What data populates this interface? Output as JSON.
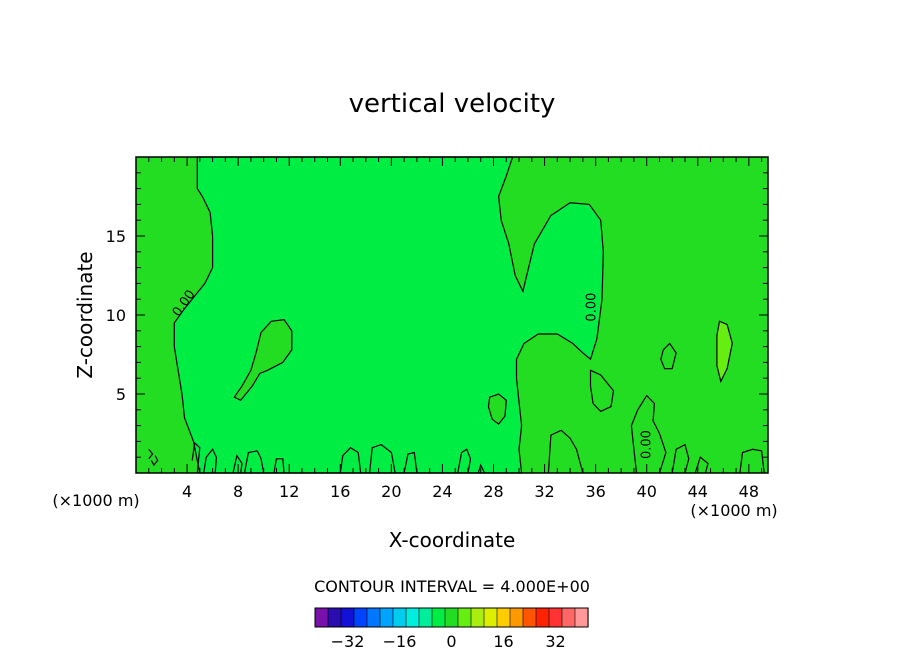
{
  "chart_data": {
    "type": "contour",
    "title": "vertical velocity",
    "xlabel": "X-coordinate",
    "ylabel": "Z-coordinate",
    "x_unit": "(×1000 m)",
    "x_unit_right": "(×1000 m)",
    "xlim": [
      0,
      49.5
    ],
    "ylim": [
      0,
      20
    ],
    "x_ticks": [
      4,
      8,
      12,
      16,
      20,
      24,
      28,
      32,
      36,
      40,
      44,
      48
    ],
    "y_ticks": [
      5,
      10,
      15
    ],
    "contour_interval_text": "CONTOUR INTERVAL = 4.000E+00",
    "contour_labels": [
      {
        "text": "0.00",
        "x": 4.0,
        "y": 10.6
      },
      {
        "text": "0.00",
        "x": 36.0,
        "y": 10.5
      },
      {
        "text": "0.00",
        "x": 40.3,
        "y": 1.8
      }
    ],
    "background_level_color": "#22dd22",
    "inner_level_color": "#00ee44",
    "positive_level_color": "#66ee11",
    "regions": [
      {
        "level": "background",
        "color": "#22dd22",
        "points": [
          [
            0,
            0
          ],
          [
            49.5,
            0
          ],
          [
            49.5,
            20
          ],
          [
            0,
            20
          ]
        ]
      },
      {
        "level": "inner",
        "color": "#00ee44",
        "points": [
          [
            4.8,
            20
          ],
          [
            4.8,
            18
          ],
          [
            5.2,
            17.5
          ],
          [
            5.8,
            16.5
          ],
          [
            6.0,
            15.0
          ],
          [
            6.0,
            13.0
          ],
          [
            5.4,
            12.0
          ],
          [
            4.6,
            11.2
          ],
          [
            3.8,
            10.4
          ],
          [
            3.0,
            9.5
          ],
          [
            3.0,
            8.0
          ],
          [
            3.3,
            6.5
          ],
          [
            3.6,
            5.0
          ],
          [
            3.8,
            3.5
          ],
          [
            4.5,
            2.0
          ],
          [
            5.0,
            0
          ],
          [
            30.2,
            0
          ],
          [
            30.0,
            1.5
          ],
          [
            30.2,
            3.0
          ],
          [
            30.0,
            4.5
          ],
          [
            29.8,
            6.0
          ],
          [
            29.8,
            7.2
          ],
          [
            30.4,
            8.2
          ],
          [
            31.5,
            8.8
          ],
          [
            33.0,
            8.8
          ],
          [
            34.2,
            8.2
          ],
          [
            35.0,
            7.6
          ],
          [
            35.6,
            7.2
          ],
          [
            36.1,
            8.5
          ],
          [
            36.5,
            11.0
          ],
          [
            36.6,
            14.0
          ],
          [
            36.4,
            16.0
          ],
          [
            35.5,
            17.0
          ],
          [
            34.0,
            17.1
          ],
          [
            32.5,
            16.3
          ],
          [
            31.2,
            14.5
          ],
          [
            30.6,
            12.5
          ],
          [
            30.3,
            11.5
          ],
          [
            29.7,
            12.5
          ],
          [
            29.2,
            14.5
          ],
          [
            28.6,
            16.0
          ],
          [
            28.4,
            17.5
          ],
          [
            29.0,
            18.8
          ],
          [
            29.5,
            20
          ]
        ]
      },
      {
        "level": "positive",
        "color": "#22dd22",
        "points": [
          [
            7.7,
            4.8
          ],
          [
            8.3,
            5.5
          ],
          [
            9.0,
            6.5
          ],
          [
            9.4,
            7.6
          ],
          [
            9.8,
            8.9
          ],
          [
            10.6,
            9.6
          ],
          [
            11.6,
            9.7
          ],
          [
            12.2,
            9.0
          ],
          [
            12.2,
            7.8
          ],
          [
            11.5,
            7.0
          ],
          [
            10.3,
            6.5
          ],
          [
            9.7,
            6.3
          ],
          [
            9.1,
            5.5
          ],
          [
            8.2,
            4.6
          ]
        ]
      },
      {
        "level": "positive",
        "color": "#22dd22",
        "points": [
          [
            27.7,
            4.8
          ],
          [
            28.4,
            5.0
          ],
          [
            29.0,
            4.6
          ],
          [
            28.9,
            3.6
          ],
          [
            28.4,
            3.1
          ],
          [
            27.9,
            3.4
          ],
          [
            27.6,
            4.2
          ]
        ]
      },
      {
        "level": "positive",
        "color": "#22dd22",
        "points": [
          [
            35.6,
            6.5
          ],
          [
            36.4,
            6.2
          ],
          [
            37.4,
            5.2
          ],
          [
            37.2,
            4.2
          ],
          [
            36.4,
            3.9
          ],
          [
            35.8,
            4.4
          ],
          [
            35.6,
            5.5
          ]
        ]
      },
      {
        "level": "positive",
        "color": "#22dd22",
        "points": [
          [
            41.3,
            7.8
          ],
          [
            41.8,
            8.2
          ],
          [
            42.3,
            7.6
          ],
          [
            42.0,
            6.6
          ],
          [
            41.4,
            6.6
          ],
          [
            41.1,
            7.2
          ]
        ]
      },
      {
        "level": "positive",
        "color": "#66ee11",
        "points": [
          [
            45.7,
            9.6
          ],
          [
            46.3,
            9.4
          ],
          [
            46.7,
            8.2
          ],
          [
            46.3,
            6.6
          ],
          [
            45.8,
            5.8
          ],
          [
            45.5,
            6.8
          ],
          [
            45.5,
            8.7
          ]
        ]
      }
    ],
    "bottom_contour_lines": [
      [
        [
          1.0,
          1.5
        ],
        [
          1.3,
          1.2
        ],
        [
          1.0,
          0.9
        ]
      ],
      [
        [
          1.5,
          1.1
        ],
        [
          1.7,
          0.8
        ],
        [
          1.4,
          0.5
        ],
        [
          1.2,
          0.8
        ]
      ],
      [
        [
          4.8,
          0
        ],
        [
          5.0,
          1.6
        ],
        [
          4.6,
          1.9
        ],
        [
          4.4,
          0.8
        ]
      ],
      [
        [
          5.3,
          0
        ],
        [
          5.5,
          1.0
        ],
        [
          6.0,
          1.5
        ],
        [
          6.3,
          1.0
        ],
        [
          6.2,
          0
        ]
      ],
      [
        [
          7.6,
          0
        ],
        [
          7.9,
          1.1
        ],
        [
          8.3,
          0.6
        ],
        [
          8.2,
          0
        ]
      ],
      [
        [
          8.5,
          0
        ],
        [
          8.8,
          1.3
        ],
        [
          9.5,
          1.4
        ],
        [
          9.8,
          0.9
        ],
        [
          10.0,
          0
        ]
      ],
      [
        [
          10.8,
          0
        ],
        [
          11.0,
          0.9
        ],
        [
          11.5,
          0.9
        ],
        [
          11.6,
          0
        ]
      ],
      [
        [
          16.0,
          0
        ],
        [
          16.2,
          1.1
        ],
        [
          16.8,
          1.6
        ],
        [
          17.4,
          1.3
        ],
        [
          17.6,
          0
        ]
      ],
      [
        [
          18.3,
          0
        ],
        [
          18.5,
          1.6
        ],
        [
          19.2,
          1.8
        ],
        [
          20.0,
          1.3
        ],
        [
          20.3,
          0
        ]
      ],
      [
        [
          21.0,
          0
        ],
        [
          21.3,
          1.2
        ],
        [
          21.8,
          1.3
        ],
        [
          22.0,
          0
        ]
      ],
      [
        [
          25.2,
          0
        ],
        [
          25.5,
          1.3
        ],
        [
          25.9,
          1.5
        ],
        [
          26.2,
          0.9
        ],
        [
          26.0,
          0
        ]
      ],
      [
        [
          26.8,
          0
        ],
        [
          27.0,
          0.5
        ],
        [
          27.3,
          0
        ]
      ],
      [
        [
          32.3,
          0
        ],
        [
          32.5,
          2.4
        ],
        [
          33.3,
          2.7
        ],
        [
          34.0,
          2.2
        ],
        [
          34.5,
          1.5
        ],
        [
          35.0,
          0
        ]
      ],
      [
        [
          39.2,
          0
        ],
        [
          39.0,
          1.5
        ],
        [
          38.8,
          3.0
        ],
        [
          39.3,
          4.0
        ],
        [
          40.0,
          4.9
        ],
        [
          40.6,
          4.4
        ],
        [
          40.5,
          3.3
        ],
        [
          41.0,
          2.5
        ],
        [
          41.5,
          1.3
        ],
        [
          41.0,
          0
        ]
      ],
      [
        [
          42.0,
          0
        ],
        [
          42.3,
          1.5
        ],
        [
          43.0,
          1.8
        ],
        [
          43.3,
          0.9
        ],
        [
          43.0,
          0
        ]
      ],
      [
        [
          43.8,
          0
        ],
        [
          44.2,
          1.0
        ],
        [
          44.8,
          0.6
        ],
        [
          44.6,
          0
        ]
      ],
      [
        [
          47.3,
          0
        ],
        [
          47.5,
          1.3
        ],
        [
          48.3,
          1.5
        ],
        [
          49.0,
          1.4
        ],
        [
          49.2,
          0
        ]
      ]
    ],
    "colorbar": {
      "colors": [
        "#7711aa",
        "#2a0cb0",
        "#1111d8",
        "#0044ff",
        "#0077ff",
        "#00a4ff",
        "#00ccee",
        "#00eedd",
        "#00ee99",
        "#00ee44",
        "#22dd22",
        "#66ee11",
        "#aaee11",
        "#ddee00",
        "#ffcc00",
        "#ff9900",
        "#ff5500",
        "#ff2200",
        "#ff3333",
        "#ff6666",
        "#ff9999"
      ],
      "labels": [
        {
          "text": "−32",
          "value": -32
        },
        {
          "text": "−16",
          "value": -16
        },
        {
          "text": "0",
          "value": 0
        },
        {
          "text": "16",
          "value": 16
        },
        {
          "text": "32",
          "value": 32
        }
      ]
    }
  }
}
